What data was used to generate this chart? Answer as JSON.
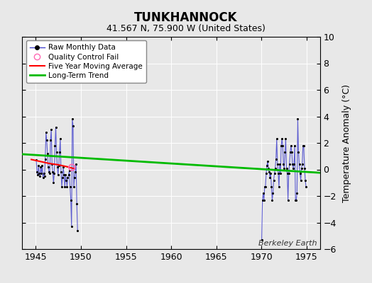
{
  "title": "TUNKHANNOCK",
  "subtitle": "41.567 N, 75.900 W (United States)",
  "ylabel": "Temperature Anomaly (°C)",
  "watermark": "Berkeley Earth",
  "xlim": [
    1943.5,
    1976.5
  ],
  "ylim": [
    -6,
    10
  ],
  "yticks": [
    -6,
    -4,
    -2,
    0,
    2,
    4,
    6,
    8,
    10
  ],
  "xticks": [
    1945,
    1950,
    1955,
    1960,
    1965,
    1970,
    1975
  ],
  "bg_color": "#e8e8e8",
  "raw_color": "#4444cc",
  "dot_color": "#000000",
  "moving_avg_color": "#ff0000",
  "trend_color": "#00bb00",
  "qc_fail_color": "#ff69b4",
  "raw_monthly_data_1945": [
    [
      1945.042,
      0.7
    ],
    [
      1945.125,
      -0.2
    ],
    [
      1945.208,
      -0.4
    ],
    [
      1945.292,
      0.3
    ],
    [
      1945.375,
      -0.3
    ],
    [
      1945.458,
      -0.5
    ],
    [
      1945.542,
      0.2
    ],
    [
      1945.625,
      -0.3
    ],
    [
      1945.708,
      0.3
    ],
    [
      1945.792,
      -0.6
    ],
    [
      1945.875,
      -0.3
    ],
    [
      1945.958,
      -0.5
    ],
    [
      1946.042,
      0.8
    ],
    [
      1946.125,
      2.8
    ],
    [
      1946.208,
      2.2
    ],
    [
      1946.292,
      1.2
    ],
    [
      1946.375,
      0.2
    ],
    [
      1946.458,
      -0.2
    ],
    [
      1946.542,
      -0.3
    ],
    [
      1946.625,
      2.2
    ],
    [
      1946.708,
      3.0
    ],
    [
      1946.792,
      0.4
    ],
    [
      1946.875,
      -0.2
    ],
    [
      1946.958,
      -1.0
    ],
    [
      1947.042,
      -0.3
    ],
    [
      1947.125,
      1.8
    ],
    [
      1947.208,
      3.2
    ],
    [
      1947.292,
      1.3
    ],
    [
      1947.375,
      0.2
    ],
    [
      1947.458,
      -0.4
    ],
    [
      1947.542,
      0.3
    ],
    [
      1947.625,
      1.3
    ],
    [
      1947.708,
      2.3
    ],
    [
      1947.792,
      -0.2
    ],
    [
      1947.875,
      -1.3
    ],
    [
      1947.958,
      -0.6
    ],
    [
      1948.042,
      0.2
    ],
    [
      1948.125,
      -0.4
    ],
    [
      1948.208,
      -1.3
    ],
    [
      1948.292,
      -0.4
    ],
    [
      1948.375,
      -0.8
    ],
    [
      1948.458,
      -1.3
    ],
    [
      1948.542,
      -0.6
    ],
    [
      1948.625,
      -0.4
    ],
    [
      1948.708,
      -0.1
    ],
    [
      1948.792,
      -1.3
    ],
    [
      1948.875,
      -2.3
    ],
    [
      1948.958,
      -4.3
    ],
    [
      1949.042,
      3.8
    ],
    [
      1949.125,
      3.3
    ],
    [
      1949.208,
      -1.3
    ],
    [
      1949.292,
      -0.6
    ],
    [
      1949.375,
      -0.2
    ],
    [
      1949.458,
      0.4
    ],
    [
      1949.542,
      -2.6
    ],
    [
      1949.625,
      -4.6
    ]
  ],
  "raw_monthly_data_1970": [
    [
      1970.042,
      -5.3
    ],
    [
      1970.125,
      -2.3
    ],
    [
      1970.208,
      -1.8
    ],
    [
      1970.292,
      -2.3
    ],
    [
      1970.375,
      -1.3
    ],
    [
      1970.458,
      -1.3
    ],
    [
      1970.542,
      -0.3
    ],
    [
      1970.625,
      0.3
    ],
    [
      1970.708,
      0.6
    ],
    [
      1970.792,
      0.1
    ],
    [
      1970.875,
      -0.2
    ],
    [
      1970.958,
      -0.6
    ],
    [
      1971.042,
      -0.3
    ],
    [
      1971.125,
      -1.3
    ],
    [
      1971.208,
      -2.3
    ],
    [
      1971.292,
      -1.8
    ],
    [
      1971.375,
      -0.8
    ],
    [
      1971.458,
      -0.3
    ],
    [
      1971.542,
      0.1
    ],
    [
      1971.625,
      0.8
    ],
    [
      1971.708,
      2.3
    ],
    [
      1971.792,
      0.4
    ],
    [
      1971.875,
      -0.3
    ],
    [
      1971.958,
      -1.3
    ],
    [
      1972.042,
      0.4
    ],
    [
      1972.125,
      -0.3
    ],
    [
      1972.208,
      1.8
    ],
    [
      1972.292,
      2.3
    ],
    [
      1972.375,
      1.8
    ],
    [
      1972.458,
      0.4
    ],
    [
      1972.542,
      0.1
    ],
    [
      1972.625,
      1.3
    ],
    [
      1972.708,
      2.3
    ],
    [
      1972.792,
      0.1
    ],
    [
      1972.875,
      -0.3
    ],
    [
      1972.958,
      -2.3
    ],
    [
      1973.042,
      -0.3
    ],
    [
      1973.125,
      0.4
    ],
    [
      1973.208,
      1.3
    ],
    [
      1973.292,
      1.8
    ],
    [
      1973.375,
      1.3
    ],
    [
      1973.458,
      0.4
    ],
    [
      1973.542,
      0.1
    ],
    [
      1973.625,
      0.4
    ],
    [
      1973.708,
      1.8
    ],
    [
      1973.792,
      -2.3
    ],
    [
      1973.875,
      -2.3
    ],
    [
      1973.958,
      -1.8
    ],
    [
      1974.042,
      3.8
    ],
    [
      1974.125,
      1.3
    ],
    [
      1974.208,
      0.4
    ],
    [
      1974.292,
      -0.3
    ],
    [
      1974.375,
      -0.8
    ],
    [
      1974.458,
      0.1
    ],
    [
      1974.542,
      0.4
    ],
    [
      1974.625,
      1.8
    ],
    [
      1974.708,
      1.8
    ],
    [
      1974.792,
      0.1
    ],
    [
      1974.875,
      -0.8
    ],
    [
      1974.958,
      -1.3
    ]
  ],
  "qc_fail_x": 1949.0,
  "qc_fail_y": 0.15,
  "moving_avg_x": [
    1944.5,
    1945.5,
    1946.5,
    1947.5,
    1948.5,
    1949.3
  ],
  "moving_avg_y": [
    0.75,
    0.6,
    0.45,
    0.35,
    0.2,
    0.05
  ],
  "trend_x": [
    1943.5,
    1976.5
  ],
  "trend_y": [
    1.15,
    -0.25
  ]
}
